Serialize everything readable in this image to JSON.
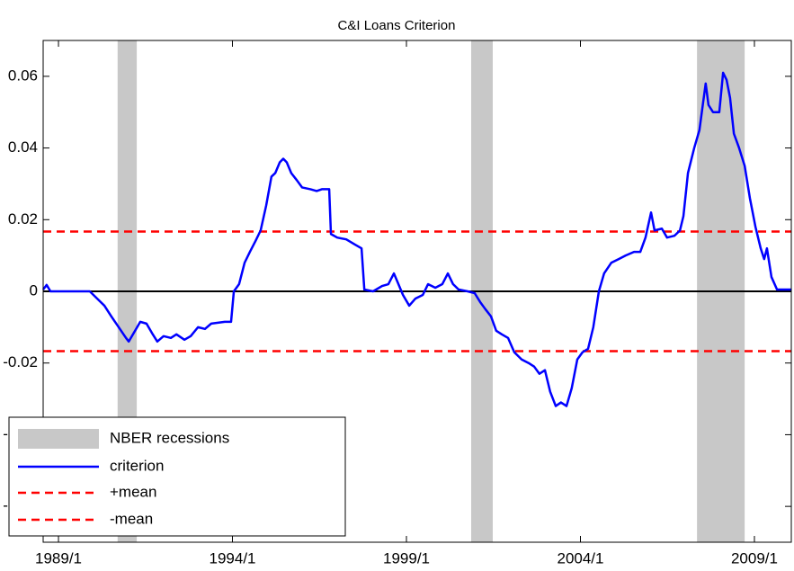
{
  "chart_data": {
    "type": "line",
    "title": "C&I Loans Criterion",
    "xlim": [
      1988.56,
      2010.06
    ],
    "xticks": [
      {
        "value": 1989,
        "label": "1989/1"
      },
      {
        "value": 1994,
        "label": "1994/1"
      },
      {
        "value": 1999,
        "label": "1999/1"
      },
      {
        "value": 2004,
        "label": "2004/1"
      },
      {
        "value": 2009,
        "label": "2009/1"
      }
    ],
    "ylim": [
      -0.07,
      0.07
    ],
    "yticks": [
      -0.06,
      -0.04,
      -0.02,
      0,
      0.02,
      0.04,
      0.06
    ],
    "legend": "lower left",
    "recessions": {
      "name": "NBER recessions",
      "color": "#c8c8c8",
      "spans": [
        [
          1990.7,
          1991.25
        ],
        [
          2000.86,
          2001.48
        ],
        [
          2007.35,
          2008.72
        ]
      ]
    },
    "series": [
      {
        "name": "criterion",
        "color": "#0000ff",
        "x": [
          1988.56,
          1988.66,
          1988.77,
          1989.9,
          1990.11,
          1990.32,
          1990.52,
          1990.73,
          1990.94,
          1991.02,
          1991.2,
          1991.35,
          1991.53,
          1991.71,
          1991.84,
          1992.02,
          1992.23,
          1992.39,
          1992.62,
          1992.8,
          1993.01,
          1993.21,
          1993.39,
          1993.78,
          1993.96,
          1994.04,
          1994.19,
          1994.35,
          1994.5,
          1994.66,
          1994.81,
          1994.97,
          1995.12,
          1995.23,
          1995.36,
          1995.46,
          1995.56,
          1995.69,
          1995.85,
          1996.0,
          1996.24,
          1996.42,
          1996.57,
          1996.78,
          1996.83,
          1997.01,
          1997.27,
          1997.53,
          1997.71,
          1997.79,
          1998.04,
          1998.3,
          1998.48,
          1998.64,
          1998.77,
          1998.9,
          1999.08,
          1999.26,
          1999.47,
          1999.62,
          1999.83,
          2000.03,
          2000.19,
          2000.34,
          2000.5,
          2000.76,
          2000.96,
          2001.12,
          2001.27,
          2001.43,
          2001.58,
          2001.74,
          2001.92,
          2002.1,
          2002.31,
          2002.51,
          2002.67,
          2002.82,
          2002.98,
          2003.13,
          2003.29,
          2003.44,
          2003.6,
          2003.75,
          2003.91,
          2004.06,
          2004.22,
          2004.37,
          2004.53,
          2004.68,
          2004.89,
          2005.1,
          2005.3,
          2005.54,
          2005.72,
          2005.87,
          2006.03,
          2006.13,
          2006.34,
          2006.49,
          2006.7,
          2006.86,
          2006.96,
          2007.09,
          2007.27,
          2007.42,
          2007.53,
          2007.6,
          2007.68,
          2007.81,
          2007.99,
          2008.1,
          2008.2,
          2008.3,
          2008.41,
          2008.56,
          2008.72,
          2008.87,
          2009.03,
          2009.18,
          2009.28,
          2009.36,
          2009.49,
          2009.65,
          2010.06
        ],
        "values": [
          0.0005,
          0.0018,
          0.0,
          0.0,
          -0.002,
          -0.004,
          -0.007,
          -0.01,
          -0.013,
          -0.014,
          -0.011,
          -0.0085,
          -0.009,
          -0.012,
          -0.014,
          -0.0125,
          -0.013,
          -0.012,
          -0.0135,
          -0.0125,
          -0.01,
          -0.0105,
          -0.009,
          -0.0085,
          -0.0085,
          0.0,
          0.002,
          0.008,
          0.011,
          0.014,
          0.017,
          0.024,
          0.032,
          0.033,
          0.036,
          0.037,
          0.036,
          0.033,
          0.031,
          0.029,
          0.0285,
          0.028,
          0.0285,
          0.0285,
          0.016,
          0.015,
          0.0145,
          0.013,
          0.012,
          0.0005,
          0.0,
          0.0015,
          0.002,
          0.005,
          0.002,
          -0.001,
          -0.004,
          -0.002,
          -0.001,
          0.002,
          0.001,
          0.002,
          0.005,
          0.002,
          0.0005,
          0.0,
          -0.0005,
          -0.003,
          -0.005,
          -0.007,
          -0.011,
          -0.012,
          -0.013,
          -0.017,
          -0.019,
          -0.02,
          -0.021,
          -0.023,
          -0.022,
          -0.028,
          -0.032,
          -0.031,
          -0.032,
          -0.027,
          -0.019,
          -0.017,
          -0.016,
          -0.01,
          0.0,
          0.005,
          0.008,
          0.009,
          0.01,
          0.011,
          0.011,
          0.015,
          0.022,
          0.017,
          0.0175,
          0.015,
          0.0155,
          0.017,
          0.021,
          0.033,
          0.04,
          0.045,
          0.053,
          0.058,
          0.052,
          0.05,
          0.05,
          0.061,
          0.059,
          0.054,
          0.044,
          0.04,
          0.035,
          0.026,
          0.018,
          0.012,
          0.009,
          0.012,
          0.004,
          0.0005,
          0.0005
        ]
      }
    ],
    "reference_lines": [
      {
        "name": "+mean",
        "value": 0.0167,
        "color": "#ff0000"
      },
      {
        "name": "-mean",
        "value": -0.0167,
        "color": "#ff0000"
      }
    ]
  }
}
